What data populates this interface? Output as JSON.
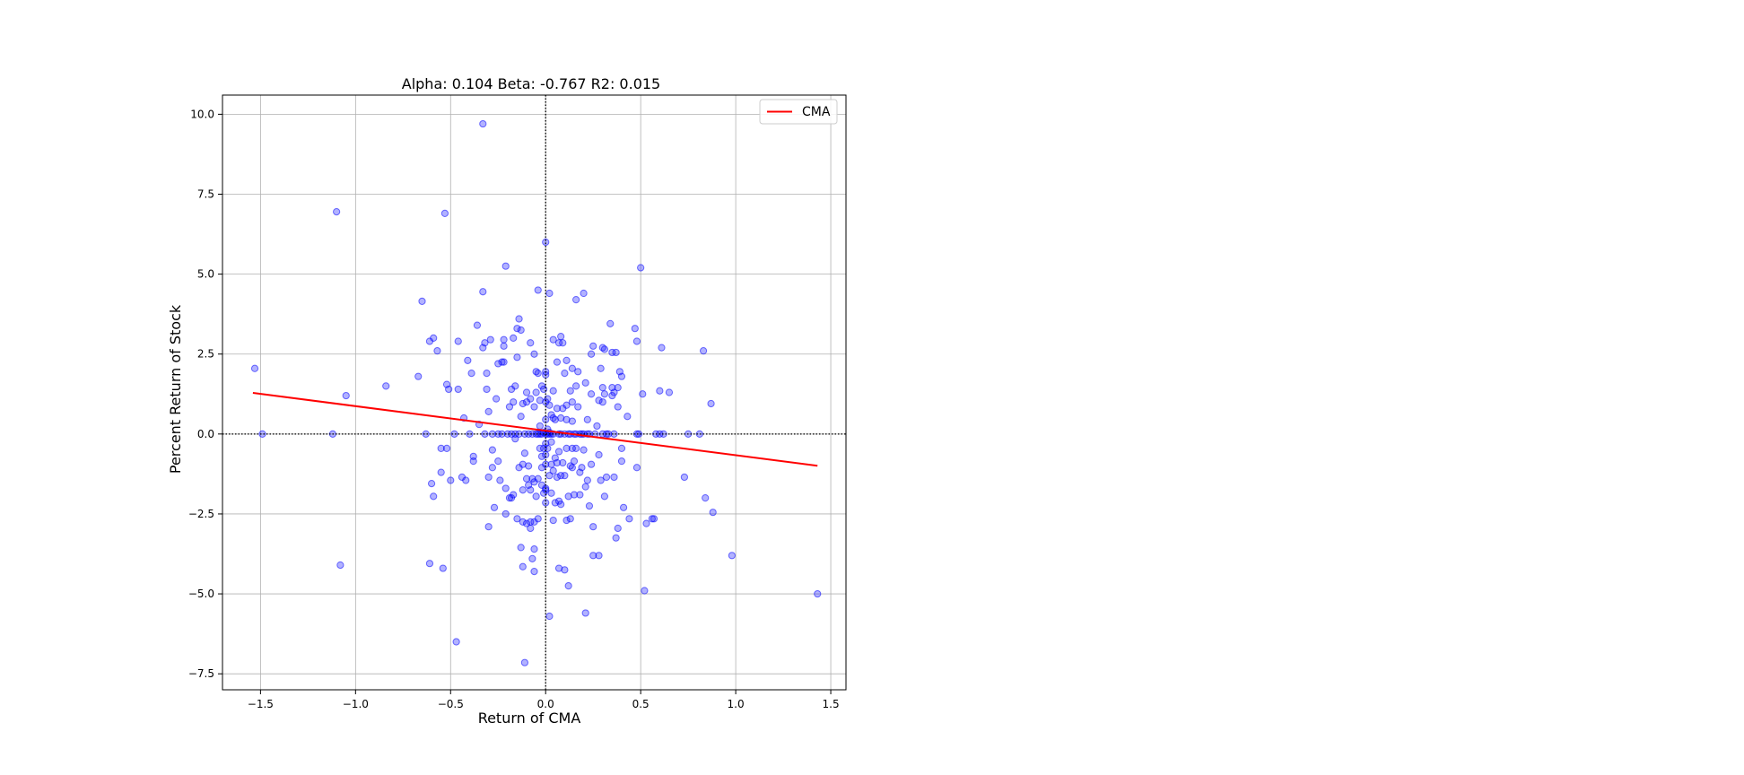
{
  "chart_data": {
    "type": "scatter",
    "title": "Alpha: 0.104 Beta: -0.767 R2: 0.015",
    "xlabel": "Return of CMA",
    "ylabel": "Percent Return of Stock",
    "xlim": [
      -1.7,
      1.58
    ],
    "ylim": [
      -8.0,
      10.6
    ],
    "x_ticks": [
      -1.5,
      -1.0,
      -0.5,
      0.0,
      0.5,
      1.0,
      1.5
    ],
    "x_tick_labels": [
      "−1.5",
      "−1.0",
      "−0.5",
      "0.0",
      "0.5",
      "1.0",
      "1.5"
    ],
    "y_ticks": [
      10.0,
      7.5,
      5.0,
      2.5,
      0.0,
      -2.5,
      -5.0,
      -7.5
    ],
    "y_tick_labels": [
      "10.0",
      "7.5",
      "5.0",
      "2.5",
      "0.0",
      "−2.5",
      "−5.0",
      "−7.5"
    ],
    "grid": true,
    "zero_lines": true,
    "legend": {
      "position": "top-right",
      "entries": [
        {
          "label": "CMA",
          "color": "#ff0000"
        }
      ]
    },
    "point_color": "#0000ff",
    "line_color": "#ff0000",
    "regression": {
      "alpha": 0.104,
      "beta": -0.767,
      "x_start": -1.54,
      "x_end": 1.43
    },
    "points": [
      [
        -1.53,
        2.05
      ],
      [
        -1.49,
        0.0
      ],
      [
        -1.1,
        6.95
      ],
      [
        -1.12,
        0.0
      ],
      [
        -1.08,
        -4.1
      ],
      [
        -1.05,
        1.2
      ],
      [
        -0.84,
        1.5
      ],
      [
        -0.67,
        1.8
      ],
      [
        -0.65,
        4.15
      ],
      [
        -0.63,
        0.0
      ],
      [
        -0.61,
        2.9
      ],
      [
        -0.59,
        3.0
      ],
      [
        -0.57,
        2.6
      ],
      [
        -0.6,
        -1.55
      ],
      [
        -0.59,
        -1.95
      ],
      [
        -0.61,
        -4.05
      ],
      [
        -0.54,
        -4.2
      ],
      [
        -0.53,
        6.9
      ],
      [
        -0.55,
        -0.45
      ],
      [
        -0.55,
        -1.2
      ],
      [
        -0.52,
        1.55
      ],
      [
        -0.51,
        1.4
      ],
      [
        -0.52,
        -0.45
      ],
      [
        -0.5,
        -1.45
      ],
      [
        -0.48,
        0.0
      ],
      [
        -0.46,
        2.9
      ],
      [
        -0.46,
        1.4
      ],
      [
        -0.44,
        -1.35
      ],
      [
        -0.43,
        0.5
      ],
      [
        -0.42,
        -1.45
      ],
      [
        -0.41,
        2.3
      ],
      [
        -0.4,
        0.0
      ],
      [
        -0.39,
        1.9
      ],
      [
        -0.38,
        -0.7
      ],
      [
        -0.38,
        -0.85
      ],
      [
        -0.36,
        3.4
      ],
      [
        -0.35,
        0.3
      ],
      [
        -0.33,
        4.45
      ],
      [
        -0.33,
        2.7
      ],
      [
        -0.32,
        2.85
      ],
      [
        -0.31,
        1.9
      ],
      [
        -0.31,
        1.4
      ],
      [
        -0.32,
        0.0
      ],
      [
        -0.3,
        0.7
      ],
      [
        -0.3,
        -1.35
      ],
      [
        -0.3,
        -2.9
      ],
      [
        -0.29,
        2.95
      ],
      [
        -0.28,
        0.0
      ],
      [
        -0.28,
        -0.5
      ],
      [
        -0.28,
        -1.05
      ],
      [
        -0.27,
        -2.3
      ],
      [
        -0.26,
        1.1
      ],
      [
        -0.25,
        2.2
      ],
      [
        -0.25,
        0.0
      ],
      [
        -0.25,
        -0.85
      ],
      [
        -0.24,
        -1.45
      ],
      [
        -0.23,
        2.25
      ],
      [
        -0.23,
        0.0
      ],
      [
        -0.22,
        2.25
      ],
      [
        -0.22,
        2.75
      ],
      [
        -0.22,
        2.95
      ],
      [
        -0.21,
        5.25
      ],
      [
        -0.21,
        -1.7
      ],
      [
        -0.21,
        -2.5
      ],
      [
        -0.2,
        0.0
      ],
      [
        -0.19,
        0.85
      ],
      [
        -0.19,
        -2.0
      ],
      [
        -0.18,
        1.4
      ],
      [
        -0.18,
        0.0
      ],
      [
        -0.17,
        1.0
      ],
      [
        -0.17,
        3.0
      ],
      [
        -0.17,
        -1.9
      ],
      [
        -0.16,
        1.5
      ],
      [
        -0.16,
        0.0
      ],
      [
        -0.16,
        -0.15
      ],
      [
        -0.15,
        3.3
      ],
      [
        -0.15,
        2.4
      ],
      [
        -0.15,
        -2.65
      ],
      [
        -0.14,
        3.6
      ],
      [
        -0.14,
        0.0
      ],
      [
        -0.14,
        -1.05
      ],
      [
        -0.13,
        3.25
      ],
      [
        -0.13,
        0.55
      ],
      [
        -0.13,
        -3.55
      ],
      [
        -0.12,
        0.95
      ],
      [
        -0.12,
        -0.95
      ],
      [
        -0.12,
        -1.75
      ],
      [
        -0.12,
        -2.75
      ],
      [
        -0.12,
        -4.15
      ],
      [
        -0.11,
        0.0
      ],
      [
        -0.11,
        -0.6
      ],
      [
        -0.11,
        -7.15
      ],
      [
        -0.1,
        1.0
      ],
      [
        -0.1,
        1.3
      ],
      [
        -0.1,
        -1.4
      ],
      [
        -0.1,
        -2.8
      ],
      [
        -0.09,
        0.0
      ],
      [
        -0.09,
        -1.0
      ],
      [
        -0.09,
        -1.6
      ],
      [
        -0.08,
        2.85
      ],
      [
        -0.08,
        1.1
      ],
      [
        -0.08,
        -1.75
      ],
      [
        -0.08,
        -2.75
      ],
      [
        -0.08,
        -2.95
      ],
      [
        -0.07,
        0.0
      ],
      [
        -0.07,
        -1.4
      ],
      [
        -0.07,
        -3.9
      ],
      [
        -0.06,
        2.5
      ],
      [
        -0.06,
        0.85
      ],
      [
        -0.06,
        -1.5
      ],
      [
        -0.06,
        -2.75
      ],
      [
        -0.06,
        -3.6
      ],
      [
        -0.06,
        -4.3
      ],
      [
        -0.05,
        1.3
      ],
      [
        -0.05,
        1.95
      ],
      [
        -0.05,
        0.0
      ],
      [
        -0.05,
        -1.95
      ],
      [
        -0.04,
        4.5
      ],
      [
        -0.04,
        1.9
      ],
      [
        -0.04,
        0.0
      ],
      [
        -0.04,
        -1.4
      ],
      [
        -0.04,
        -2.65
      ],
      [
        -0.03,
        1.05
      ],
      [
        -0.03,
        0.25
      ],
      [
        -0.03,
        0.0
      ],
      [
        -0.03,
        -0.45
      ],
      [
        -0.02,
        1.5
      ],
      [
        -0.02,
        0.0
      ],
      [
        -0.02,
        -0.7
      ],
      [
        -0.02,
        -1.05
      ],
      [
        -0.02,
        -1.6
      ],
      [
        -0.01,
        1.4
      ],
      [
        -0.01,
        0.05
      ],
      [
        -0.01,
        -0.45
      ],
      [
        -0.01,
        -1.85
      ],
      [
        0.0,
        6.0
      ],
      [
        0.0,
        1.95
      ],
      [
        0.0,
        1.85
      ],
      [
        0.0,
        1.0
      ],
      [
        0.0,
        0.45
      ],
      [
        0.0,
        0.0
      ],
      [
        0.0,
        -0.3
      ],
      [
        0.0,
        -0.65
      ],
      [
        0.0,
        -0.95
      ],
      [
        0.0,
        -1.7
      ],
      [
        0.0,
        -1.75
      ],
      [
        0.0,
        -2.15
      ],
      [
        0.01,
        1.1
      ],
      [
        0.01,
        0.15
      ],
      [
        0.01,
        0.0
      ],
      [
        0.01,
        -0.45
      ],
      [
        0.02,
        4.4
      ],
      [
        0.02,
        0.9
      ],
      [
        0.02,
        0.05
      ],
      [
        0.02,
        0.0
      ],
      [
        0.02,
        -1.3
      ],
      [
        0.02,
        -5.7
      ],
      [
        0.03,
        0.6
      ],
      [
        0.03,
        0.0
      ],
      [
        0.03,
        -0.25
      ],
      [
        0.03,
        -0.95
      ],
      [
        0.03,
        -1.85
      ],
      [
        0.04,
        2.95
      ],
      [
        0.04,
        1.35
      ],
      [
        0.04,
        0.5
      ],
      [
        0.04,
        0.0
      ],
      [
        0.04,
        -1.15
      ],
      [
        0.04,
        -2.7
      ],
      [
        0.05,
        0.45
      ],
      [
        0.05,
        -0.75
      ],
      [
        0.05,
        -2.15
      ],
      [
        0.06,
        2.25
      ],
      [
        0.06,
        0.8
      ],
      [
        0.06,
        -0.9
      ],
      [
        0.06,
        -1.35
      ],
      [
        0.07,
        2.85
      ],
      [
        0.07,
        0.0
      ],
      [
        0.07,
        -0.55
      ],
      [
        0.07,
        -4.2
      ],
      [
        0.08,
        3.05
      ],
      [
        0.08,
        0.5
      ],
      [
        0.08,
        0.0
      ],
      [
        0.08,
        -1.3
      ],
      [
        0.08,
        -2.2
      ],
      [
        0.09,
        2.85
      ],
      [
        0.09,
        0.8
      ],
      [
        0.09,
        -0.9
      ],
      [
        0.1,
        1.9
      ],
      [
        0.1,
        0.0
      ],
      [
        0.1,
        -1.3
      ],
      [
        0.1,
        -4.25
      ],
      [
        0.11,
        2.3
      ],
      [
        0.11,
        0.9
      ],
      [
        0.11,
        0.45
      ],
      [
        0.11,
        -0.45
      ],
      [
        0.11,
        -2.7
      ],
      [
        0.12,
        0.0
      ],
      [
        0.12,
        -1.95
      ],
      [
        0.12,
        -4.75
      ],
      [
        0.13,
        1.35
      ],
      [
        0.13,
        0.0
      ],
      [
        0.13,
        -1.0
      ],
      [
        0.13,
        -2.65
      ],
      [
        0.14,
        2.05
      ],
      [
        0.14,
        1.0
      ],
      [
        0.14,
        0.4
      ],
      [
        0.14,
        -0.45
      ],
      [
        0.14,
        -1.05
      ],
      [
        0.15,
        0.0
      ],
      [
        0.15,
        -0.85
      ],
      [
        0.15,
        -1.9
      ],
      [
        0.16,
        1.5
      ],
      [
        0.16,
        4.2
      ],
      [
        0.16,
        0.0
      ],
      [
        0.16,
        -0.45
      ],
      [
        0.17,
        1.95
      ],
      [
        0.17,
        0.85
      ],
      [
        0.18,
        0.0
      ],
      [
        0.18,
        -1.2
      ],
      [
        0.18,
        -1.9
      ],
      [
        0.19,
        0.0
      ],
      [
        0.19,
        -1.05
      ],
      [
        0.2,
        4.4
      ],
      [
        0.2,
        0.0
      ],
      [
        0.2,
        -0.5
      ],
      [
        0.21,
        1.6
      ],
      [
        0.21,
        -1.65
      ],
      [
        0.21,
        -5.6
      ],
      [
        0.22,
        0.45
      ],
      [
        0.22,
        0.0
      ],
      [
        0.22,
        -1.45
      ],
      [
        0.23,
        0.0
      ],
      [
        0.23,
        -2.25
      ],
      [
        0.24,
        2.5
      ],
      [
        0.24,
        1.25
      ],
      [
        0.24,
        -0.95
      ],
      [
        0.25,
        2.75
      ],
      [
        0.25,
        -2.9
      ],
      [
        0.25,
        -3.8
      ],
      [
        0.26,
        0.0
      ],
      [
        0.27,
        0.25
      ],
      [
        0.28,
        1.05
      ],
      [
        0.28,
        -0.65
      ],
      [
        0.28,
        -3.8
      ],
      [
        0.29,
        2.05
      ],
      [
        0.29,
        -1.45
      ],
      [
        0.3,
        2.7
      ],
      [
        0.3,
        1.45
      ],
      [
        0.3,
        1.0
      ],
      [
        0.3,
        0.0
      ],
      [
        0.31,
        2.65
      ],
      [
        0.31,
        1.25
      ],
      [
        0.31,
        -1.95
      ],
      [
        0.32,
        0.0
      ],
      [
        0.32,
        -1.35
      ],
      [
        0.33,
        0.0
      ],
      [
        0.34,
        3.45
      ],
      [
        0.35,
        2.55
      ],
      [
        0.35,
        1.45
      ],
      [
        0.35,
        1.2
      ],
      [
        0.36,
        1.3
      ],
      [
        0.36,
        0.0
      ],
      [
        0.36,
        -1.35
      ],
      [
        0.37,
        2.55
      ],
      [
        0.37,
        -3.25
      ],
      [
        0.38,
        1.45
      ],
      [
        0.38,
        0.85
      ],
      [
        0.38,
        -2.95
      ],
      [
        0.39,
        1.95
      ],
      [
        0.4,
        1.8
      ],
      [
        0.4,
        -0.45
      ],
      [
        0.4,
        -0.85
      ],
      [
        0.41,
        -2.3
      ],
      [
        0.43,
        0.55
      ],
      [
        0.44,
        -2.65
      ],
      [
        0.47,
        3.3
      ],
      [
        0.48,
        2.9
      ],
      [
        0.48,
        0.0
      ],
      [
        0.48,
        -1.05
      ],
      [
        0.49,
        0.0
      ],
      [
        0.5,
        5.2
      ],
      [
        0.51,
        1.25
      ],
      [
        0.52,
        -4.9
      ],
      [
        0.53,
        -2.8
      ],
      [
        0.56,
        -2.65
      ],
      [
        0.57,
        -2.65
      ],
      [
        0.58,
        0.0
      ],
      [
        0.6,
        1.35
      ],
      [
        0.6,
        0.0
      ],
      [
        0.61,
        2.7
      ],
      [
        0.62,
        0.0
      ],
      [
        0.65,
        1.3
      ],
      [
        0.73,
        -1.35
      ],
      [
        0.75,
        0.0
      ],
      [
        0.81,
        0.0
      ],
      [
        0.83,
        2.6
      ],
      [
        0.84,
        -2.0
      ],
      [
        0.87,
        0.95
      ],
      [
        0.88,
        -2.45
      ],
      [
        0.98,
        -3.8
      ],
      [
        1.43,
        -5.0
      ],
      [
        -0.33,
        9.7
      ],
      [
        -0.47,
        -6.5
      ],
      [
        -0.18,
        -2.0
      ],
      [
        0.07,
        -2.1
      ]
    ]
  }
}
